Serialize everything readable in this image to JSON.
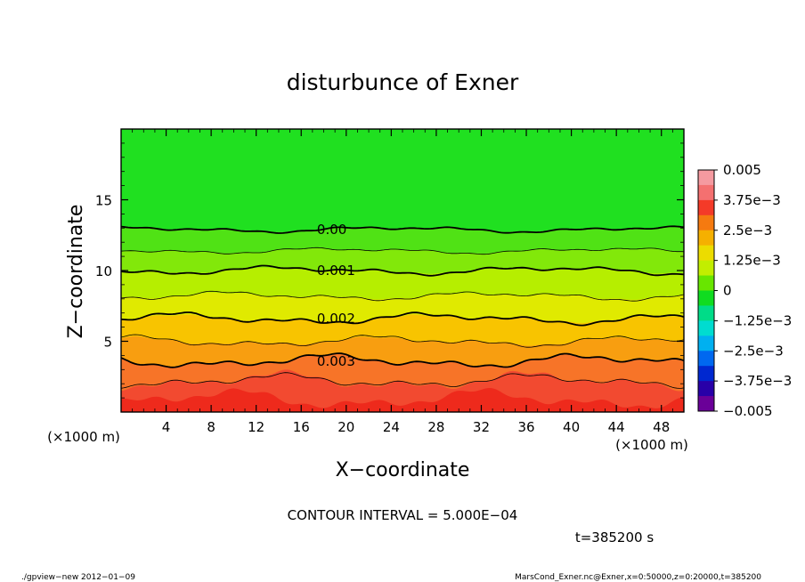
{
  "chart_data": {
    "type": "contour",
    "title": "disturbunce of Exner",
    "xlabel": "X−coordinate",
    "ylabel": "Z−coordinate",
    "x_unit_left": "(×1000 m)",
    "x_unit_right": "(×1000 m)",
    "xlim": [
      0,
      50
    ],
    "ylim": [
      0,
      20
    ],
    "x_ticks": [
      4,
      8,
      12,
      16,
      20,
      24,
      28,
      32,
      36,
      40,
      44,
      48
    ],
    "x_tick_labels": [
      "4",
      "8",
      "12",
      "16",
      "20",
      "24",
      "28",
      "32",
      "36",
      "40",
      "44",
      "48"
    ],
    "y_ticks": [
      5,
      10,
      15
    ],
    "y_tick_labels": [
      "5",
      "10",
      "15"
    ],
    "contour_interval_text": "CONTOUR INTERVAL = 5.000E−04",
    "time_text": "t=385200 s",
    "contour_levels": [
      0.0,
      0.0005,
      0.001,
      0.0015,
      0.002,
      0.0025,
      0.003,
      0.0035
    ],
    "contour_mean_heights": [
      12.9,
      11.4,
      10.0,
      8.2,
      6.6,
      5.0,
      3.6,
      2.2
    ],
    "contour_labels": [
      {
        "text": "0.00",
        "x": 17.4,
        "z": 12.9
      },
      {
        "text": "0.001",
        "x": 17.4,
        "z": 10.0
      },
      {
        "text": "0.002",
        "x": 17.4,
        "z": 6.6
      },
      {
        "text": "0.003",
        "x": 17.4,
        "z": 3.6
      }
    ],
    "colorbar": {
      "min": -0.005,
      "max": 0.005,
      "labels": [
        "0.005",
        "3.75e−3",
        "2.5e−3",
        "1.25e−3",
        "0",
        "−1.25e−3",
        "−2.5e−3",
        "−3.75e−3",
        "−0.005"
      ],
      "colors": [
        "#f59aa0",
        "#f47070",
        "#f43a28",
        "#f57a10",
        "#f5b000",
        "#ecdc00",
        "#c2ee00",
        "#68e600",
        "#10dc20",
        "#00dc88",
        "#00dcd0",
        "#00b0f0",
        "#0068f0",
        "#0028d0",
        "#2800a8",
        "#6a0098"
      ]
    },
    "field_layers": [
      {
        "value_band": "above 0",
        "color": "#20e020"
      },
      {
        "value_band": "0 to 5e-4",
        "color": "#50e215"
      },
      {
        "value_band": "5e-4 to 1e-3",
        "color": "#82e80a"
      },
      {
        "value_band": "1e-3 to 1.5e-3",
        "color": "#b6ee00"
      },
      {
        "value_band": "1.5e-3 to 2e-3",
        "color": "#e0ea00"
      },
      {
        "value_band": "2e-3 to 2.5e-3",
        "color": "#f8c400"
      },
      {
        "value_band": "2.5e-3 to 3e-3",
        "color": "#f89e10"
      },
      {
        "value_band": "3e-3 to 3.5e-3",
        "color": "#f77428"
      },
      {
        "value_band": "3.5e-3 to 4e-3",
        "color": "#f24a30"
      },
      {
        "value_band": "4e-3 to 4.5e-3",
        "color": "#ee2a1c"
      }
    ]
  },
  "footer": {
    "left": "./gpview−new   2012−01−09",
    "right": "MarsCond_Exner.nc@Exner,x=0:50000,z=0:20000,t=385200"
  }
}
